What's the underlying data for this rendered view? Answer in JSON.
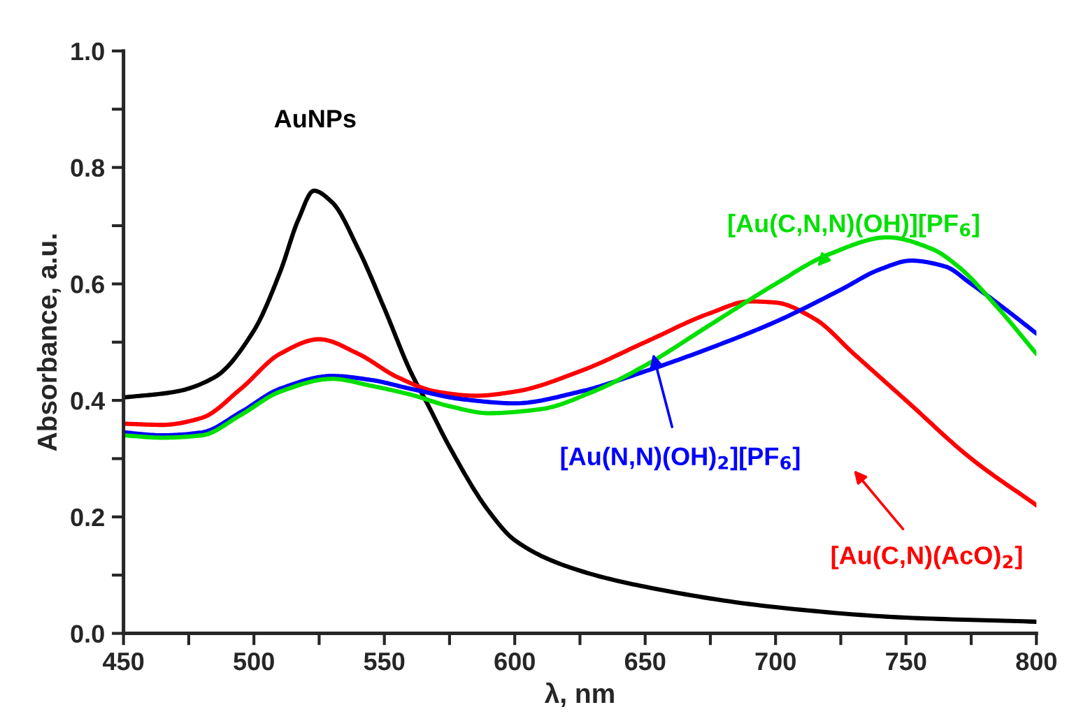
{
  "chart_data": {
    "type": "line",
    "xlabel": "λ, nm",
    "ylabel": "Absorbance, a.u.",
    "xlim": [
      450,
      800
    ],
    "ylim": [
      0,
      1.0
    ],
    "xticks": [
      450,
      {
        "value": 475,
        "label": null
      },
      500,
      {
        "value": 525,
        "label": null
      },
      550,
      {
        "value": 575,
        "label": null
      },
      600,
      {
        "value": 625,
        "label": null
      },
      650,
      {
        "value": 675,
        "label": null
      },
      700,
      {
        "value": 725,
        "label": null
      },
      750,
      {
        "value": 775,
        "label": null
      },
      800
    ],
    "yticks": [
      {
        "value": 0,
        "label": "0.0"
      },
      {
        "value": 0.1,
        "label": null
      },
      0.2,
      {
        "value": 0.3,
        "label": null
      },
      0.4,
      {
        "value": 0.5,
        "label": null
      },
      0.6,
      {
        "value": 0.7,
        "label": null
      },
      0.8,
      {
        "value": 0.9,
        "label": null
      },
      {
        "value": 1.0,
        "label": "1.0"
      }
    ],
    "grid": false,
    "line_style": "solid",
    "marker": "none",
    "series": [
      {
        "name": "AuNPs",
        "color": "#000000",
        "x": [
          450,
          470,
          485,
          500,
          510,
          517,
          523,
          530,
          540,
          550,
          560,
          567,
          575,
          590,
          600,
          620,
          650,
          700,
          750,
          800
        ],
        "values": [
          0.405,
          0.415,
          0.44,
          0.52,
          0.62,
          0.71,
          0.76,
          0.74,
          0.66,
          0.558,
          0.45,
          0.39,
          0.32,
          0.21,
          0.16,
          0.115,
          0.08,
          0.045,
          0.027,
          0.02
        ]
      },
      {
        "name": "[Au(C,N)(AcO)$_{2}$]",
        "color": "#ff0000",
        "x": [
          450,
          465,
          480,
          495,
          510,
          525,
          540,
          555,
          570,
          585,
          600,
          625,
          650,
          675,
          690,
          700,
          715,
          730,
          750,
          775,
          800
        ],
        "values": [
          0.36,
          0.358,
          0.37,
          0.42,
          0.48,
          0.505,
          0.48,
          0.44,
          0.415,
          0.408,
          0.415,
          0.45,
          0.5,
          0.55,
          0.57,
          0.568,
          0.54,
          0.48,
          0.4,
          0.3,
          0.22
        ]
      },
      {
        "name": "[Au(N,N)(OH)$_{2}$][PF$_{6}$]",
        "color": "#0000ff",
        "x": [
          450,
          465,
          480,
          495,
          510,
          530,
          545,
          560,
          580,
          600,
          625,
          650,
          675,
          700,
          725,
          740,
          752,
          765,
          775,
          790,
          800
        ],
        "values": [
          0.345,
          0.34,
          0.345,
          0.38,
          0.42,
          0.442,
          0.435,
          0.42,
          0.402,
          0.395,
          0.415,
          0.45,
          0.49,
          0.535,
          0.59,
          0.625,
          0.64,
          0.63,
          0.6,
          0.55,
          0.515
        ]
      },
      {
        "name": "[Au(C,N,N)(OH)][PF$_{6}$]",
        "color": "#00e000",
        "x": [
          450,
          465,
          480,
          495,
          510,
          530,
          545,
          560,
          575,
          590,
          610,
          630,
          650,
          675,
          700,
          720,
          743,
          760,
          770,
          785,
          800
        ],
        "values": [
          0.34,
          0.336,
          0.34,
          0.375,
          0.415,
          0.437,
          0.425,
          0.41,
          0.39,
          0.378,
          0.385,
          0.415,
          0.46,
          0.53,
          0.6,
          0.65,
          0.68,
          0.66,
          0.63,
          0.56,
          0.48
        ]
      }
    ]
  }
}
